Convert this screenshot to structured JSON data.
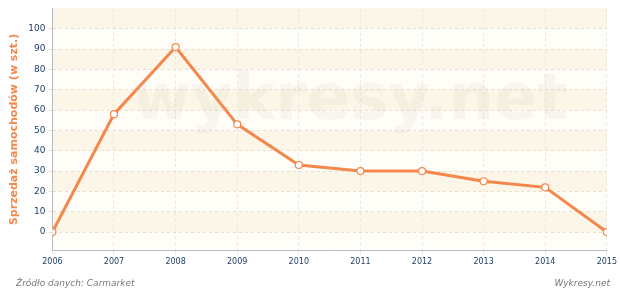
{
  "chart_data": {
    "type": "line",
    "y_label": "Sprzedaż samochodów (w szt.)",
    "annotations": [
      "Źródło danych: Carmarket",
      "Wykresy.net",
      "wykresy.net"
    ],
    "categories": [
      "2006",
      "2007",
      "2008",
      "2009",
      "2010",
      "2011",
      "2012",
      "2013",
      "2014",
      "2015"
    ],
    "values": [
      0,
      58,
      91,
      53,
      33,
      30,
      30,
      25,
      22,
      0
    ],
    "color": "#f4874b",
    "marker": "circle",
    "ylim": [
      -9,
      110
    ],
    "yticks": [
      0,
      10,
      20,
      30,
      40,
      50,
      60,
      70,
      80,
      90,
      100
    ],
    "grid": true
  }
}
